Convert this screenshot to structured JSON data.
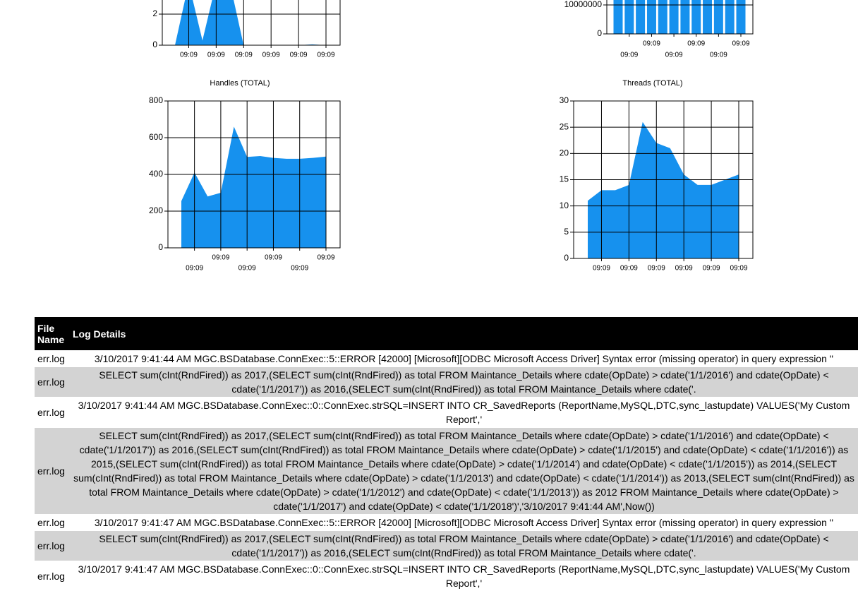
{
  "chart_data": [
    {
      "type": "area",
      "categories": [
        null,
        "09:09",
        null,
        "09:09",
        null,
        "09:09",
        null,
        "09:09",
        null,
        "09:09",
        null,
        "09:09"
      ],
      "values": [
        0,
        4,
        0.3,
        4,
        4,
        0,
        0,
        0,
        0,
        0,
        0.05,
        0
      ],
      "color": "#1691ee",
      "ylim": [
        0,
        4
      ],
      "yticks": [
        0,
        2
      ],
      "grid": true
    },
    {
      "type": "bar",
      "categories": [
        null,
        "09:09",
        null,
        "09:09",
        null,
        "09:09",
        null,
        "09:09",
        null,
        "09:09",
        null,
        "09:09"
      ],
      "values": [
        12000000,
        12000000,
        12000000,
        12000000,
        12000000,
        12000000,
        12000000,
        12000000,
        12000000,
        12000000,
        12000000,
        12000000
      ],
      "color": "#1691ee",
      "ylim": [
        0,
        12000000
      ],
      "yticks": [
        0,
        10000000
      ],
      "grid": true
    },
    {
      "type": "area",
      "title": "Handles (TOTAL)",
      "categories": [
        null,
        "09:09",
        null,
        "09:09",
        null,
        "09:09",
        null,
        "09:09",
        null,
        "09:09",
        null,
        "09:09"
      ],
      "values": [
        255,
        410,
        280,
        300,
        660,
        495,
        500,
        490,
        485,
        485,
        490,
        497
      ],
      "color": "#1691ee",
      "ylim": [
        0,
        800
      ],
      "yticks": [
        0,
        200,
        400,
        600,
        800
      ],
      "grid": true
    },
    {
      "type": "area",
      "title": "Threads (TOTAL)",
      "categories": [
        null,
        "09:09",
        null,
        "09:09",
        null,
        "09:09",
        null,
        "09:09",
        null,
        "09:09",
        null,
        "09:09"
      ],
      "values": [
        11,
        13,
        13,
        14,
        26,
        22,
        21,
        16,
        14,
        14,
        15,
        16
      ],
      "color": "#1691ee",
      "ylim": [
        0,
        30
      ],
      "yticks": [
        0,
        5,
        10,
        15,
        20,
        25,
        30
      ],
      "grid": true
    }
  ],
  "table": {
    "header": [
      "File Name",
      "Log Details"
    ],
    "rows": [
      [
        "err.log",
        "3/10/2017 9:41:44 AM MGC.BSDatabase.ConnExec::5::ERROR [42000] [Microsoft][ODBC Microsoft Access Driver] Syntax error (missing operator) in query expression ''"
      ],
      [
        "err.log",
        "SELECT sum(cInt(RndFired)) as 2017,(SELECT sum(cInt(RndFired)) as total FROM Maintance_Details where cdate(OpDate) > cdate('1/1/2016') and cdate(OpDate) < cdate('1/1/2017')) as 2016,(SELECT sum(cInt(RndFired)) as total FROM Maintance_Details where cdate('."
      ],
      [
        "err.log",
        "3/10/2017 9:41:44 AM MGC.BSDatabase.ConnExec::0::ConnExec.strSQL=INSERT INTO CR_SavedReports (ReportName,MySQL,DTC,sync_lastupdate) VALUES('My Custom Report','"
      ],
      [
        "err.log",
        "SELECT sum(cInt(RndFired)) as 2017,(SELECT sum(cInt(RndFired)) as total FROM Maintance_Details where cdate(OpDate) > cdate('1/1/2016') and cdate(OpDate) < cdate('1/1/2017')) as 2016,(SELECT sum(cInt(RndFired)) as total FROM Maintance_Details where cdate(OpDate) > cdate('1/1/2015') and cdate(OpDate) < cdate('1/1/2016')) as 2015,(SELECT sum(cInt(RndFired)) as total FROM Maintance_Details where cdate(OpDate) > cdate('1/1/2014') and cdate(OpDate) < cdate('1/1/2015')) as 2014,(SELECT sum(cInt(RndFired)) as total FROM Maintance_Details where cdate(OpDate) > cdate('1/1/2013') and cdate(OpDate) < cdate('1/1/2014')) as 2013,(SELECT sum(cInt(RndFired)) as total FROM Maintance_Details where cdate(OpDate) > cdate('1/1/2012') and cdate(OpDate) < cdate('1/1/2013')) as 2012 FROM Maintance_Details where cdate(OpDate) > cdate('1/1/2017') and cdate(OpDate) < cdate('1/1/2018')','3/10/2017 9:41:44 AM',Now())"
      ],
      [
        "err.log",
        "3/10/2017 9:41:47 AM MGC.BSDatabase.ConnExec::5::ERROR [42000] [Microsoft][ODBC Microsoft Access Driver] Syntax error (missing operator) in query expression ''"
      ],
      [
        "err.log",
        "SELECT sum(cInt(RndFired)) as 2017,(SELECT sum(cInt(RndFired)) as total FROM Maintance_Details where cdate(OpDate) > cdate('1/1/2016') and cdate(OpDate) < cdate('1/1/2017')) as 2016,(SELECT sum(cInt(RndFired)) as total FROM Maintance_Details where cdate('."
      ],
      [
        "err.log",
        "3/10/2017 9:41:47 AM MGC.BSDatabase.ConnExec::0::ConnExec.strSQL=INSERT INTO CR_SavedReports (ReportName,MySQL,DTC,sync_lastupdate) VALUES('My Custom Report','"
      ]
    ]
  }
}
